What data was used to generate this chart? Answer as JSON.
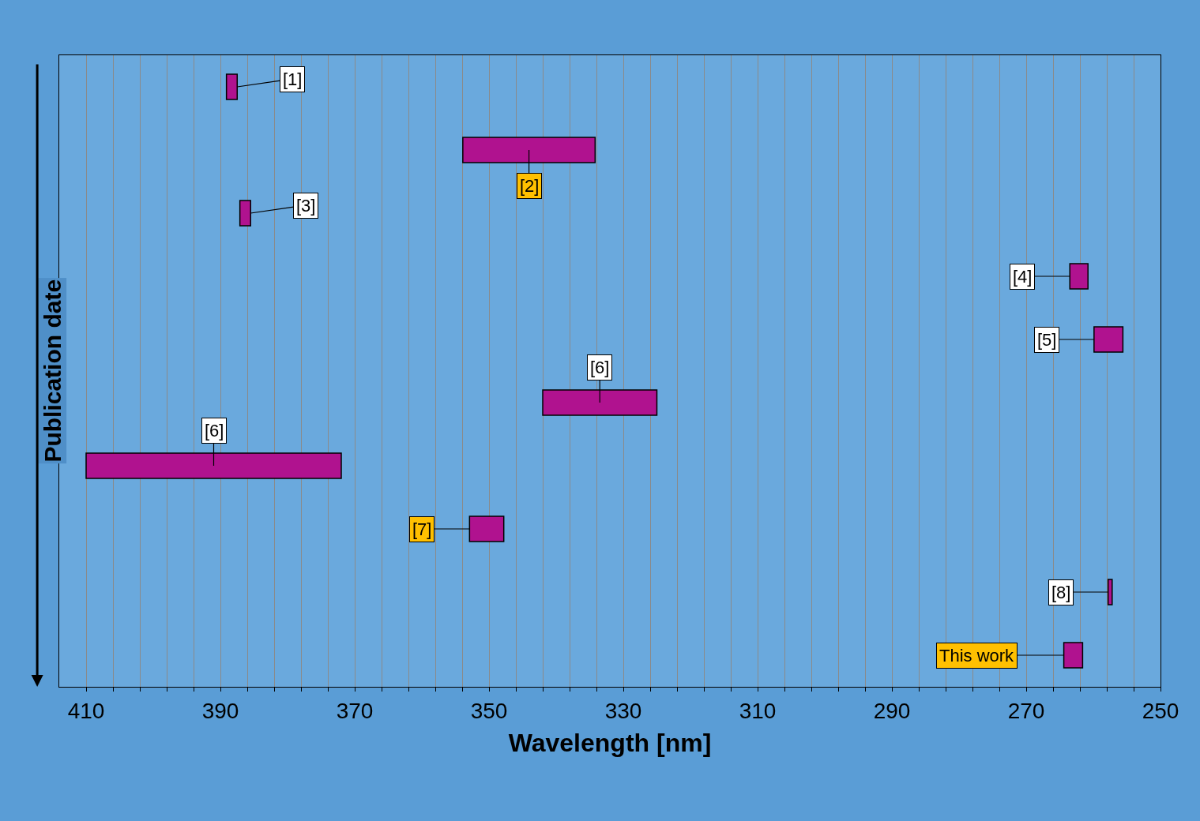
{
  "chart_data": {
    "type": "bar",
    "orientation": "horizontal",
    "xlabel": "Wavelength [nm]",
    "ylabel": "Publication date",
    "categories": [
      null,
      null,
      null,
      null,
      null,
      null,
      null,
      null,
      null,
      null
    ],
    "base": [
      387.5,
      334.2,
      385.5,
      260.8,
      255.6,
      325.0,
      372.0,
      347.8,
      257.2,
      261.6
    ],
    "values": [
      1.6,
      19.7,
      1.6,
      2.7,
      4.3,
      17.0,
      38.0,
      5.1,
      0.6,
      2.8
    ],
    "annotations": [
      "[1]",
      "[2]",
      "[3]",
      "[4]",
      "[5]",
      "[6]",
      "[6]",
      "[7]",
      "[8]",
      "This work"
    ],
    "color": "#b0128f",
    "xlim": [
      414,
      250
    ],
    "xticks": [
      410,
      {
        "value": 406,
        "label": null
      },
      {
        "value": 402,
        "label": null
      },
      {
        "value": 398,
        "label": null
      },
      {
        "value": 394,
        "label": null
      },
      390,
      {
        "value": 386,
        "label": null
      },
      {
        "value": 382,
        "label": null
      },
      {
        "value": 378,
        "label": null
      },
      {
        "value": 374,
        "label": null
      },
      370,
      {
        "value": 366,
        "label": null
      },
      {
        "value": 362,
        "label": null
      },
      {
        "value": 358,
        "label": null
      },
      {
        "value": 354,
        "label": null
      },
      350,
      {
        "value": 346,
        "label": null
      },
      {
        "value": 342,
        "label": null
      },
      {
        "value": 338,
        "label": null
      },
      {
        "value": 334,
        "label": null
      },
      330,
      {
        "value": 326,
        "label": null
      },
      {
        "value": 322,
        "label": null
      },
      {
        "value": 318,
        "label": null
      },
      {
        "value": 314,
        "label": null
      },
      310,
      {
        "value": 306,
        "label": null
      },
      {
        "value": 302,
        "label": null
      },
      {
        "value": 298,
        "label": null
      },
      {
        "value": 294,
        "label": null
      },
      290,
      {
        "value": 286,
        "label": null
      },
      {
        "value": 282,
        "label": null
      },
      {
        "value": 278,
        "label": null
      },
      {
        "value": 274,
        "label": null
      },
      270,
      {
        "value": 266,
        "label": null
      },
      {
        "value": 262,
        "label": null
      },
      {
        "value": 258,
        "label": null
      },
      {
        "value": 254,
        "label": null
      },
      250
    ],
    "grid": "x",
    "legend": false,
    "tick_labels": "x"
  }
}
